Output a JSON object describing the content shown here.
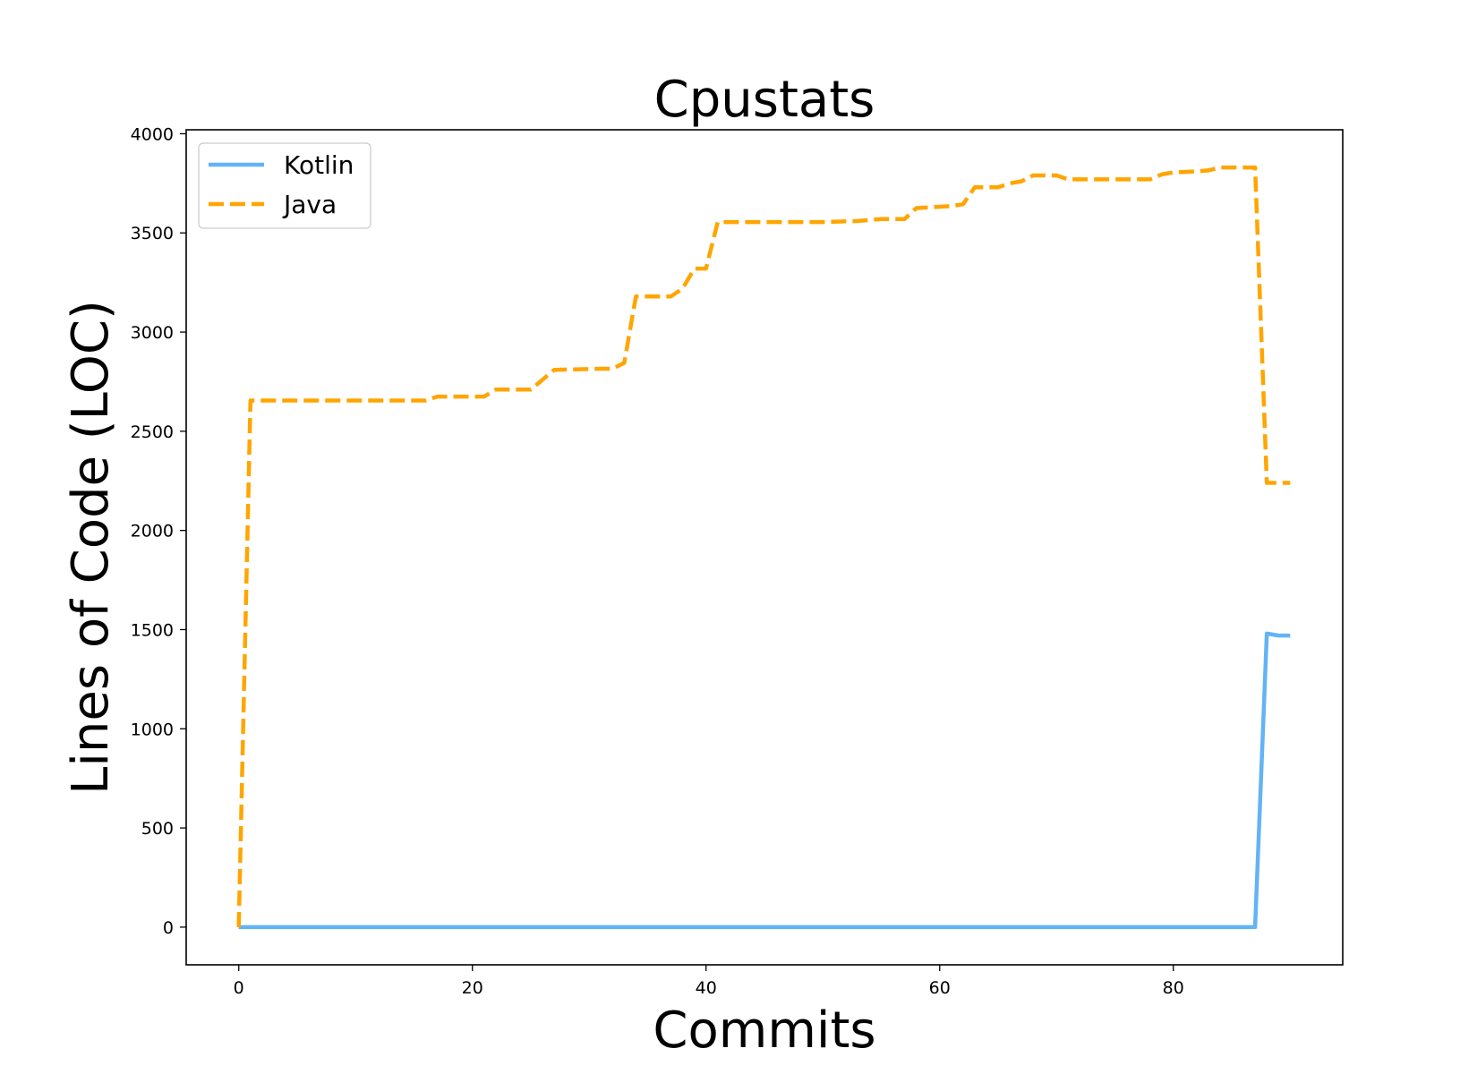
{
  "chart_data": {
    "type": "line",
    "title": "Cpustats",
    "xlabel": "Commits",
    "ylabel": "Lines of Code (LOC)",
    "xlim": [
      -4.5,
      94.5
    ],
    "ylim": [
      -190,
      4020
    ],
    "xticks": [
      0,
      20,
      40,
      60,
      80
    ],
    "yticks": [
      0,
      500,
      1000,
      1500,
      2000,
      2500,
      3000,
      3500,
      4000
    ],
    "grid": false,
    "legend_position": "upper-left",
    "series": [
      {
        "name": "Kotlin",
        "color": "#63b3f5",
        "style": "solid",
        "points": [
          [
            0,
            0
          ],
          [
            87,
            0
          ],
          [
            88,
            1480
          ],
          [
            89,
            1470
          ],
          [
            90,
            1470
          ]
        ]
      },
      {
        "name": "Java",
        "color": "#ffa500",
        "style": "dashed",
        "points": [
          [
            0,
            0
          ],
          [
            1,
            2655
          ],
          [
            5,
            2655
          ],
          [
            10,
            2655
          ],
          [
            16,
            2655
          ],
          [
            17,
            2675
          ],
          [
            21,
            2675
          ],
          [
            22,
            2710
          ],
          [
            25,
            2710
          ],
          [
            27,
            2810
          ],
          [
            31,
            2815
          ],
          [
            32,
            2815
          ],
          [
            33,
            2845
          ],
          [
            34,
            3180
          ],
          [
            37,
            3180
          ],
          [
            38,
            3220
          ],
          [
            39,
            3320
          ],
          [
            40,
            3320
          ],
          [
            41,
            3555
          ],
          [
            45,
            3555
          ],
          [
            50,
            3555
          ],
          [
            53,
            3560
          ],
          [
            55,
            3570
          ],
          [
            57,
            3570
          ],
          [
            58,
            3625
          ],
          [
            61,
            3635
          ],
          [
            62,
            3645
          ],
          [
            63,
            3730
          ],
          [
            65,
            3730
          ],
          [
            66,
            3750
          ],
          [
            67,
            3760
          ],
          [
            68,
            3790
          ],
          [
            70,
            3790
          ],
          [
            71,
            3770
          ],
          [
            75,
            3770
          ],
          [
            78,
            3770
          ],
          [
            79,
            3795
          ],
          [
            80,
            3805
          ],
          [
            82,
            3810
          ],
          [
            83,
            3815
          ],
          [
            84,
            3830
          ],
          [
            86,
            3830
          ],
          [
            87,
            3830
          ],
          [
            88,
            2240
          ],
          [
            89,
            2240
          ],
          [
            90,
            2240
          ]
        ]
      }
    ]
  }
}
